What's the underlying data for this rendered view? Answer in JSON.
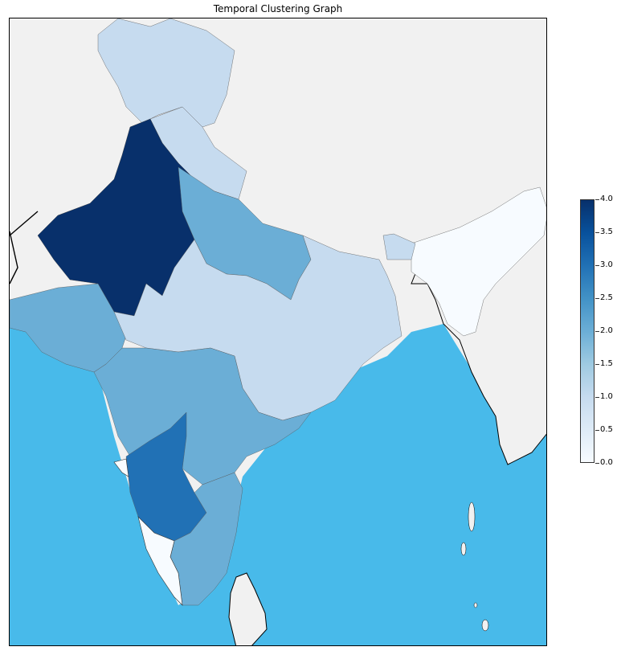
{
  "title": "Temporal Clustering Graph",
  "colorbar": {
    "ticks": [
      "0.0",
      "0.5",
      "1.0",
      "1.5",
      "2.0",
      "2.5",
      "3.0",
      "3.5",
      "4.0"
    ],
    "min": 0,
    "max": 4,
    "colormap": "Blues"
  },
  "colors": {
    "ocean": "#48baea",
    "land_outside": "#f1f1f1",
    "c0": "#f7fbff",
    "c1": "#c6dbef",
    "c2": "#6baed6",
    "c3": "#2171b5",
    "c4": "#08306b"
  },
  "regions": [
    {
      "name": "north-kashmir",
      "cluster": 1
    },
    {
      "name": "rajasthan-punjab-haryana",
      "cluster": 4
    },
    {
      "name": "uttarakhand-himachal",
      "cluster": 1
    },
    {
      "name": "uttar-pradesh",
      "cluster": 2
    },
    {
      "name": "gujarat",
      "cluster": 2
    },
    {
      "name": "central-east-india",
      "cluster": 1
    },
    {
      "name": "maharashtra-telangana-andhra",
      "cluster": 2
    },
    {
      "name": "karnataka",
      "cluster": 3
    },
    {
      "name": "kerala-goa",
      "cluster": 0
    },
    {
      "name": "tamil-nadu",
      "cluster": 2
    },
    {
      "name": "northeast",
      "cluster": 0
    }
  ]
}
